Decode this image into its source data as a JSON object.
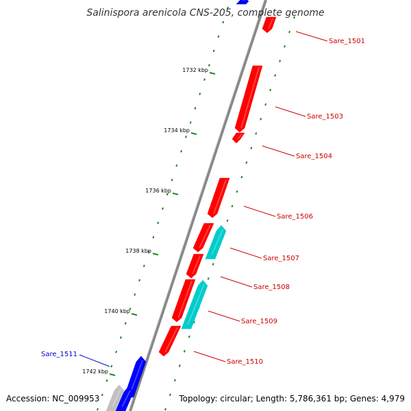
{
  "title": "Salinispora arenicola CNS-205, complete genome",
  "accession": "Accession: NC_009953",
  "topology": "Topology: circular; Length: 5,786,361 bp; Genes: 4,979",
  "colors": {
    "forward_gene": "#ff0000",
    "reverse_gene": "#0000ff",
    "other_feature": "#00cccc",
    "pseudo_feature": "#c0c0c0",
    "backbone": "#888888",
    "gc_skew_dots": "#1a8a1a",
    "forward_label": "#cc0000",
    "reverse_label": "#0000cc"
  },
  "scale_labels": [
    "1732 kbp",
    "1734 kbp",
    "1736 kbp",
    "1738 kbp",
    "1740 kbp",
    "1742 kbp"
  ],
  "gene_labels": [
    {
      "text": "Sare_1501",
      "strand": "forward"
    },
    {
      "text": "Sare_1503",
      "strand": "forward"
    },
    {
      "text": "Sare_1504",
      "strand": "forward"
    },
    {
      "text": "Sare_1506",
      "strand": "forward"
    },
    {
      "text": "Sare_1507",
      "strand": "forward"
    },
    {
      "text": "Sare_1508",
      "strand": "forward"
    },
    {
      "text": "Sare_1509",
      "strand": "forward"
    },
    {
      "text": "Sare_1510",
      "strand": "forward"
    },
    {
      "text": "Sare_1511",
      "strand": "reverse"
    }
  ]
}
